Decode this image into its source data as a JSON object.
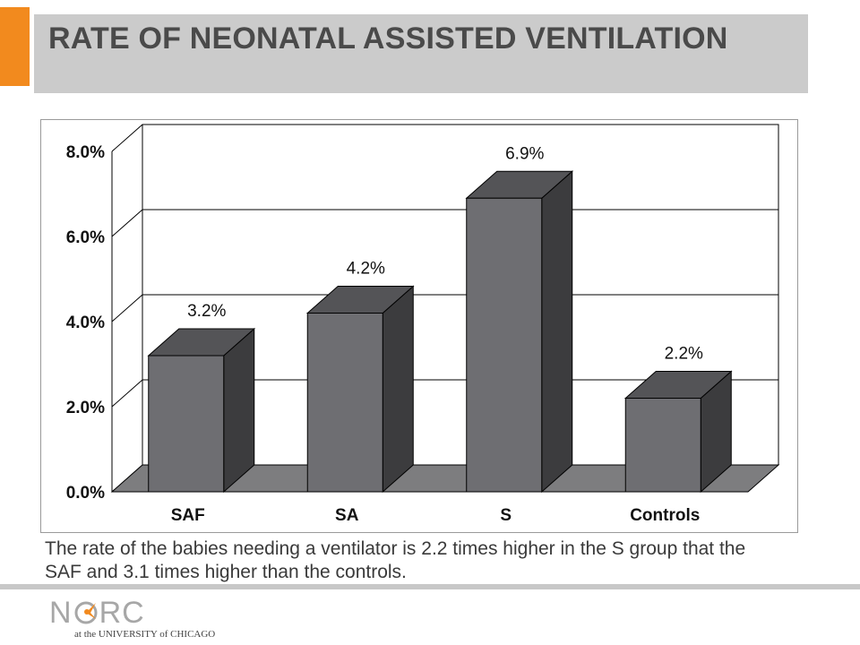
{
  "header": {
    "title": "RATE OF NEONATAL ASSISTED VENTILATION",
    "accent_color": "#f28a1e"
  },
  "chart_data": {
    "type": "bar",
    "title": "",
    "xlabel": "",
    "ylabel": "",
    "categories": [
      "SAF",
      "SA",
      "S",
      "Controls"
    ],
    "values": [
      3.2,
      4.2,
      6.9,
      2.2
    ],
    "value_labels": [
      "3.2%",
      "4.2%",
      "6.9%",
      "2.2%"
    ],
    "ylim": [
      0,
      8
    ],
    "yticks": [
      "0.0%",
      "2.0%",
      "4.0%",
      "6.0%",
      "8.0%"
    ],
    "grid": true,
    "style": "3d",
    "colors": {
      "bar_front": "#6e6e72",
      "bar_top": "#545457",
      "bar_side": "#3c3c3e",
      "floor": "#7d7d7f"
    }
  },
  "caption": "The rate of the babies needing a ventilator is 2.2 times higher in the S group that the SAF and 3.1 times higher than the controls.",
  "footer": {
    "logo_text_n": "N",
    "logo_text_rc": "RC",
    "logo_subtitle": "at the UNIVERSITY of CHICAGO"
  }
}
